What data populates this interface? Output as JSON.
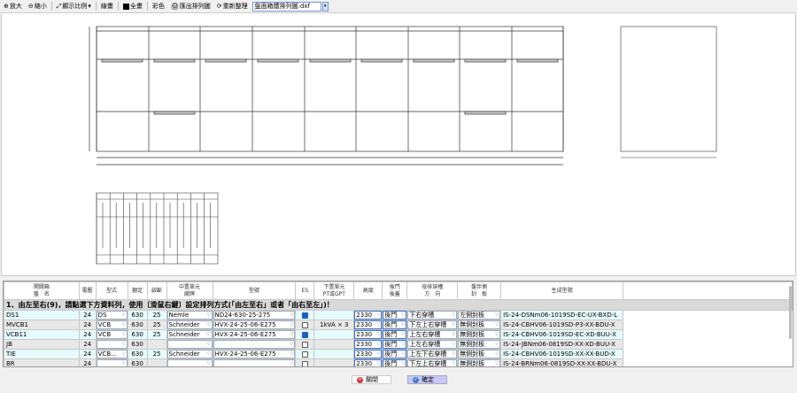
{
  "toolbar": {
    "zoom_in": "放大",
    "zoom_out": "縮小",
    "display_scale": "顯示比例",
    "line_draw": "線畫",
    "full_draw": "全畫",
    "color": "彩色",
    "export": "匯出排列圖",
    "reorganize": "重新整理",
    "file": "盤面箱體排列圖.dxf"
  },
  "grid": {
    "headers": [
      [
        "開關箱",
        "盤　名"
      ],
      [
        "",
        "電壓"
      ],
      [
        "",
        "型式"
      ],
      [
        "",
        "額定"
      ],
      [
        "",
        "啟斷"
      ],
      [
        "中置單元",
        "廠牌"
      ],
      [
        "",
        "型號"
      ],
      [
        "",
        "ES"
      ],
      [
        "下置單元",
        "PT或GPT"
      ],
      [
        "",
        "高度"
      ],
      [
        "後門",
        "後蓋"
      ],
      [
        "母排穿槽",
        "方　向"
      ],
      [
        "盤伴側",
        "封　板"
      ],
      [
        "",
        "生成型號"
      ]
    ],
    "group_label": "1、由左至右(9)，請點選下方資料列，使用〔滑鼠右鍵〕設定排列方式(「由左至右」或者「由右至左」)！",
    "rows": [
      {
        "name": "DS1",
        "voltage": "24",
        "type": "DS",
        "rated": "630",
        "break": "25",
        "brand": "Nemle",
        "model": "ND24-630-25-275",
        "es": true,
        "pt": "",
        "height": "2330",
        "rear": "後門",
        "busbar": "下右穿槽",
        "side": "左側封板",
        "code": "IS-24-DSNm06-1019SD-EC-UX-BXD-L"
      },
      {
        "name": "MVCB1",
        "voltage": "24",
        "type": "VCB",
        "rated": "630",
        "break": "25",
        "brand": "Schneider",
        "model": "HVX-24-25-06-E275",
        "es": false,
        "pt": "1kVA × 3",
        "height": "2330",
        "rear": "後門",
        "busbar": "下左上右穿槽",
        "side": "無側封板",
        "code": "IS-24-CBHV06-1019SD-P3-XX-BDU-X"
      },
      {
        "name": "VCB11",
        "voltage": "24",
        "type": "VCB",
        "rated": "630",
        "break": "25",
        "brand": "Schneider",
        "model": "HVX-24-25-06-E275",
        "es": true,
        "pt": "",
        "height": "2330",
        "rear": "後門",
        "busbar": "上左右穿槽",
        "side": "無側封板",
        "code": "IS-24-CBHV06-1019SD-EC-XD-BUU-X"
      },
      {
        "name": "JB",
        "voltage": "24",
        "type": "",
        "rated": "630",
        "break": "",
        "brand": "",
        "model": "",
        "es": false,
        "pt": "",
        "height": "2330",
        "rear": "後門",
        "busbar": "上左右穿槽",
        "side": "無側封板",
        "code": "IS-24-JBNm06-0819SD-XX-XD-BUU-X"
      },
      {
        "name": "TIE",
        "voltage": "24",
        "type": "VCB...",
        "rated": "630",
        "break": "25",
        "brand": "Schneider",
        "model": "HVX-24-25-06-E275",
        "es": false,
        "pt": "",
        "height": "2330",
        "rear": "後門",
        "busbar": "上左下右穿槽",
        "side": "無側封板",
        "code": "IS-24-CBHV06-1019SD-XX-XX-BUD-X"
      },
      {
        "name": "BR",
        "voltage": "24",
        "type": "",
        "rated": "630",
        "break": "",
        "brand": "",
        "model": "",
        "es": false,
        "pt": "",
        "height": "2330",
        "rear": "後門",
        "busbar": "下左上右穿槽",
        "side": "無側封板",
        "code": "IS-24-BRNm06-0819SD-XX-XX-BDU-X"
      }
    ]
  },
  "buttons": {
    "close": "關閉",
    "ok": "確定"
  },
  "colors": {
    "row_cyan": "#e6fbfb",
    "row_gray": "#e8e8e8",
    "ok_bg": "#c8c8f8",
    "checked": "#1f5fbf"
  }
}
